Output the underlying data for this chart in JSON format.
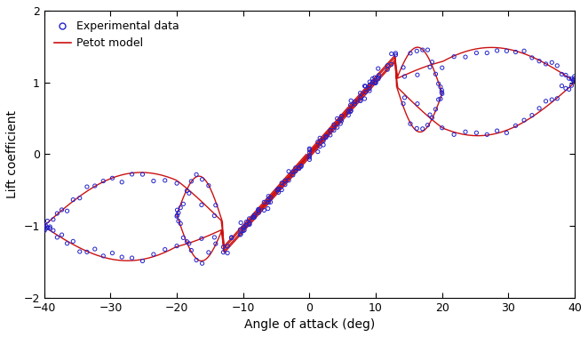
{
  "xlabel": "Angle of attack (deg)",
  "ylabel": "Lift coefficient",
  "xlim": [
    -40,
    40
  ],
  "ylim": [
    -2,
    2
  ],
  "xticks": [
    -40,
    -30,
    -20,
    -10,
    0,
    10,
    20,
    30,
    40
  ],
  "yticks": [
    -2,
    -1,
    0,
    1,
    2
  ],
  "legend_labels": [
    "Experimental data",
    "Petot model"
  ],
  "exp_color": "#2222cc",
  "model_color": "#cc1111",
  "bg_color": "#ffffff",
  "axis_fontsize": 10
}
